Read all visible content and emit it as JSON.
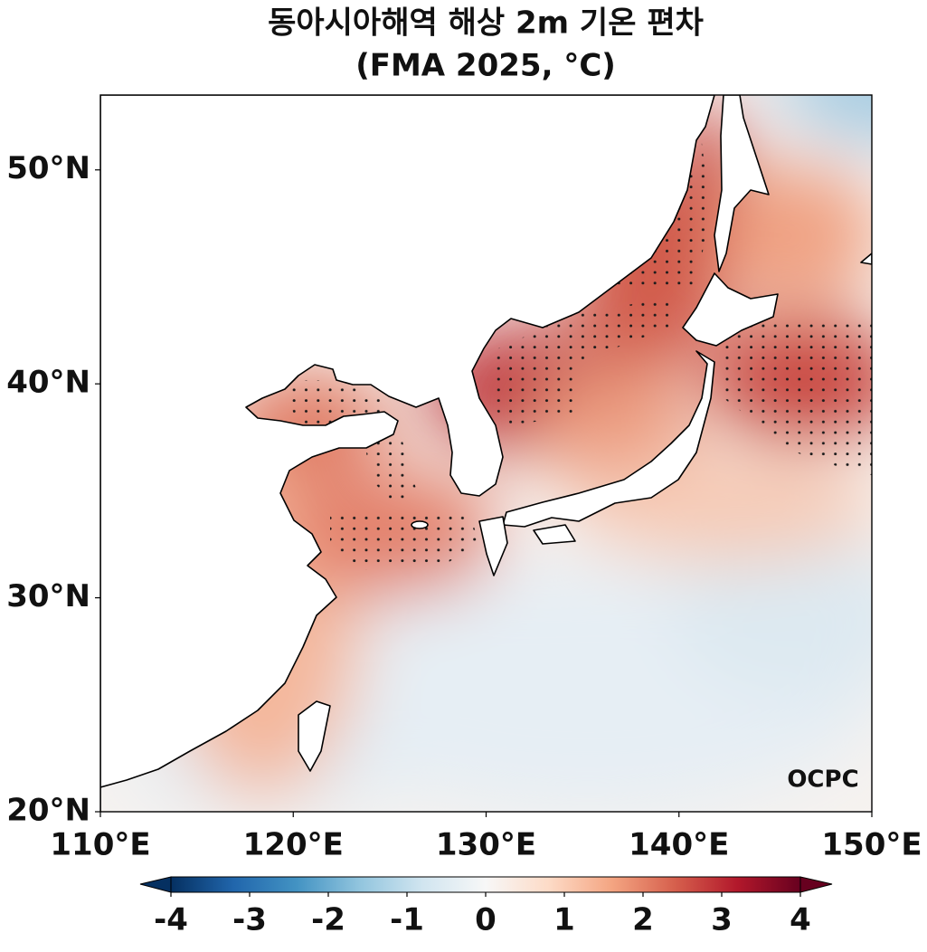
{
  "map": {
    "title": "동아시아해역 해상 2m 기온 편차",
    "subtitle": "(FMA 2025, °C)",
    "xlim": [
      110,
      150
    ],
    "ylim": [
      20,
      53.5
    ],
    "xticks": [
      {
        "value": 110,
        "label": "110°E"
      },
      {
        "value": 120,
        "label": "120°E"
      },
      {
        "value": 130,
        "label": "130°E"
      },
      {
        "value": 140,
        "label": "140°E"
      },
      {
        "value": 150,
        "label": "150°E"
      }
    ],
    "yticks": [
      {
        "value": 20,
        "label": "20°N"
      },
      {
        "value": 30,
        "label": "30°N"
      },
      {
        "value": 40,
        "label": "40°N"
      },
      {
        "value": 50,
        "label": "50°N"
      }
    ],
    "logo": "OCPC"
  },
  "colorbar": {
    "range": [
      -4,
      4
    ],
    "ticks": [
      -4,
      -3,
      -2,
      -1,
      0,
      1,
      2,
      3,
      4
    ]
  }
}
